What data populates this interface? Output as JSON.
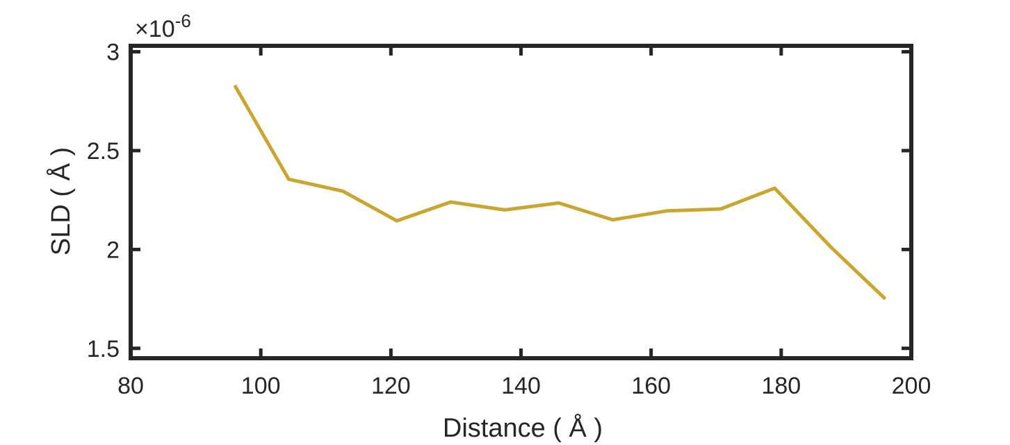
{
  "chart_data": {
    "type": "line",
    "xlabel": "Distance ( Å )",
    "ylabel": "SLD ( Å )",
    "xlim": [
      80,
      200
    ],
    "ylim": [
      1.45,
      3.03
    ],
    "xticks": [
      "80",
      "100",
      "120",
      "140",
      "160",
      "180",
      "200"
    ],
    "yticks": [
      "1.5",
      "2",
      "2.5",
      "3"
    ],
    "y_exponent": {
      "base": "×10",
      "power": "-6"
    },
    "grid": false,
    "series": [
      {
        "color": "#c9a632",
        "x": [
          96,
          104.3,
          112.6,
          120.9,
          129.2,
          137.5,
          145.8,
          154.1,
          162.4,
          170.7,
          179,
          187.7,
          196
        ],
        "y": [
          2.83,
          2.355,
          2.295,
          2.145,
          2.24,
          2.2,
          2.235,
          2.15,
          2.195,
          2.205,
          2.31,
          2.01,
          1.75
        ]
      }
    ]
  }
}
